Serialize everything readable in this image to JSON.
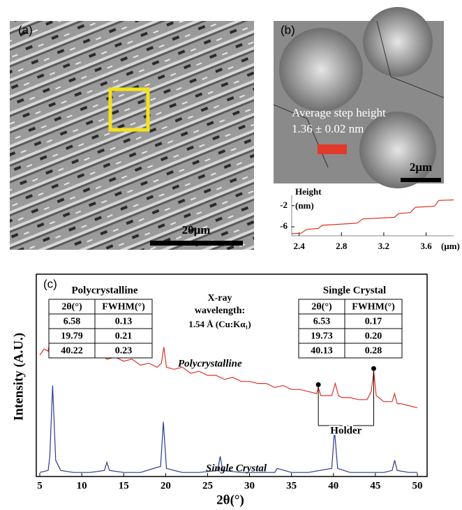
{
  "panels": {
    "a": {
      "label": "(a)",
      "scale_bar": "20μm"
    },
    "b": {
      "label": "(b)",
      "annotation": [
        "Average step height",
        "1.36 ± 0.02 nm"
      ],
      "scale_bar": "2μm"
    },
    "profile": {
      "type": "line",
      "y_label": [
        "Height",
        "(nm)"
      ],
      "x_unit": "(μm)",
      "xlim": [
        2.33,
        3.86
      ],
      "ylim": [
        -7.7,
        -0.7
      ],
      "xticks": [
        2.4,
        2.8,
        3.2,
        3.6
      ],
      "yticks": [
        -2,
        -6
      ],
      "series": [
        {
          "color": "#e0301e",
          "x": [
            2.33,
            2.42,
            2.47,
            2.58,
            2.62,
            2.95,
            3.0,
            3.3,
            3.34,
            3.45,
            3.5,
            3.68,
            3.72,
            3.86
          ],
          "values": [
            -7.3,
            -7.2,
            -6.5,
            -6.3,
            -5.7,
            -5.3,
            -4.5,
            -4.2,
            -3.5,
            -3.3,
            -2.3,
            -2.1,
            -1.0,
            -0.9
          ]
        }
      ]
    },
    "c": {
      "label": "(c)",
      "type": "line",
      "x_label": "2θ(°)",
      "y_label": "Intensity (A.U.)",
      "xlim": [
        5,
        50
      ],
      "ylim": [
        0,
        100
      ],
      "xticks": [
        5,
        10,
        15,
        20,
        25,
        30,
        35,
        40,
        45,
        50
      ],
      "series": [
        {
          "name": "Polycrystalline",
          "color": "#d9342b",
          "x": [
            5,
            5.5,
            6,
            6.3,
            6.58,
            6.9,
            7.3,
            8,
            9,
            10,
            11,
            12,
            13,
            14,
            15,
            16,
            17,
            18,
            19,
            19.5,
            19.79,
            20.1,
            21,
            22,
            23,
            24,
            25,
            26,
            27,
            28,
            29,
            30,
            31,
            32,
            33,
            34,
            35,
            36,
            37,
            38,
            38.2,
            38.5,
            39,
            39.8,
            40.22,
            40.6,
            41,
            42,
            43,
            44,
            44.5,
            44.8,
            45.1,
            46,
            47,
            47.3,
            47.6,
            48,
            49,
            50
          ],
          "values": [
            60,
            63,
            62,
            70,
            86,
            66,
            63,
            64,
            61,
            62,
            59,
            61,
            58,
            59,
            57,
            58,
            55,
            56,
            54,
            56,
            64,
            54,
            53,
            54,
            51,
            52,
            50,
            50,
            48,
            49,
            47,
            47,
            46,
            46,
            44,
            45,
            43,
            43,
            42,
            41,
            44,
            40,
            40,
            40,
            46,
            40,
            39,
            39,
            38,
            38,
            42,
            52,
            40,
            37,
            37,
            41,
            36,
            36,
            35,
            34
          ]
        },
        {
          "name": "Single Crystal",
          "color": "#2b3a8f",
          "x": [
            5,
            6,
            6.2,
            6.53,
            6.9,
            7.5,
            9,
            11,
            12.7,
            13,
            13.3,
            15,
            17,
            19.4,
            19.73,
            20.1,
            22,
            24,
            26.2,
            26.5,
            26.8,
            29,
            31,
            33,
            33.3,
            35,
            37,
            39.8,
            40.13,
            40.5,
            42,
            44,
            46,
            47,
            47.3,
            47.6,
            49,
            50
          ],
          "values": [
            2,
            3,
            10,
            45,
            8,
            3,
            2,
            2,
            3,
            7,
            3,
            2,
            2,
            5,
            27,
            4,
            2,
            2,
            3,
            10,
            3,
            2,
            2,
            2,
            4,
            2,
            2,
            4,
            23,
            4,
            2,
            2,
            2,
            3,
            8,
            3,
            2,
            2
          ]
        }
      ],
      "tables": [
        {
          "title": "Polycrystalline",
          "header": [
            "2θ(°)",
            "FWHM(°)"
          ],
          "rows": [
            [
              "6.58",
              "0.13"
            ],
            [
              "19.79",
              "0.21"
            ],
            [
              "40.22",
              "0.23"
            ]
          ]
        },
        {
          "title": "Single Crystal",
          "header": [
            "2θ(°)",
            "FWHM(°)"
          ],
          "rows": [
            [
              "6.53",
              "0.17"
            ],
            [
              "19.73",
              "0.20"
            ],
            [
              "40.13",
              "0.28"
            ]
          ]
        }
      ],
      "wavelength": [
        "X-ray",
        "wavelength:",
        "1.54 Å (Cu:Kα₁)"
      ],
      "holder": {
        "label": "Holder",
        "x": [
          38.2,
          44.8
        ]
      }
    }
  }
}
